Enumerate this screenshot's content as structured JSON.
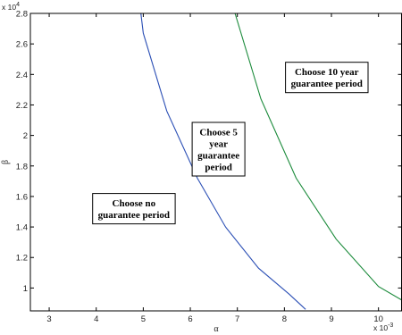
{
  "chart_data": {
    "type": "line",
    "xlabel": "α",
    "ylabel": "β",
    "x_multiplier": "x 10",
    "x_multiplier_exp": "-3",
    "y_multiplier": "x 10",
    "y_multiplier_exp": "4",
    "xlim": [
      2.6,
      10.5
    ],
    "ylim": [
      0.85,
      2.8
    ],
    "x_ticks": [
      3,
      4,
      5,
      6,
      7,
      8,
      9,
      10
    ],
    "y_ticks": [
      1,
      1.2,
      1.4,
      1.6,
      1.8,
      2,
      2.2,
      2.4,
      2.6,
      2.8
    ],
    "x_tick_labels": [
      "3",
      "4",
      "5",
      "6",
      "7",
      "8",
      "9",
      "10"
    ],
    "y_tick_labels": [
      "1",
      "1.2",
      "1.4",
      "1.6",
      "1.8",
      "2",
      "2.2",
      "2.4",
      "2.6",
      "2.8"
    ],
    "grid": false,
    "series": [
      {
        "color": "#2b4fb5",
        "points": [
          [
            4.95,
            2.8
          ],
          [
            5.0,
            2.67
          ],
          [
            5.5,
            2.16
          ],
          [
            6.15,
            1.72
          ],
          [
            6.75,
            1.4
          ],
          [
            7.45,
            1.13
          ],
          [
            8.1,
            0.96
          ],
          [
            8.45,
            0.86
          ]
        ]
      },
      {
        "color": "#1a8a3a",
        "points": [
          [
            6.95,
            2.8
          ],
          [
            7.0,
            2.75
          ],
          [
            7.5,
            2.24
          ],
          [
            8.25,
            1.72
          ],
          [
            9.1,
            1.32
          ],
          [
            10.0,
            1.01
          ],
          [
            10.5,
            0.92
          ]
        ]
      }
    ],
    "annotations": [
      {
        "lines": [
          "Choose 10 year",
          "guarantee period"
        ],
        "x": 8.9,
        "y": 2.38
      },
      {
        "lines": [
          "Choose 5",
          "year",
          "guarantee",
          "period"
        ],
        "x": 6.6,
        "y": 1.91
      },
      {
        "lines": [
          "Choose no",
          "guarantee period"
        ],
        "x": 4.8,
        "y": 1.52
      }
    ]
  }
}
